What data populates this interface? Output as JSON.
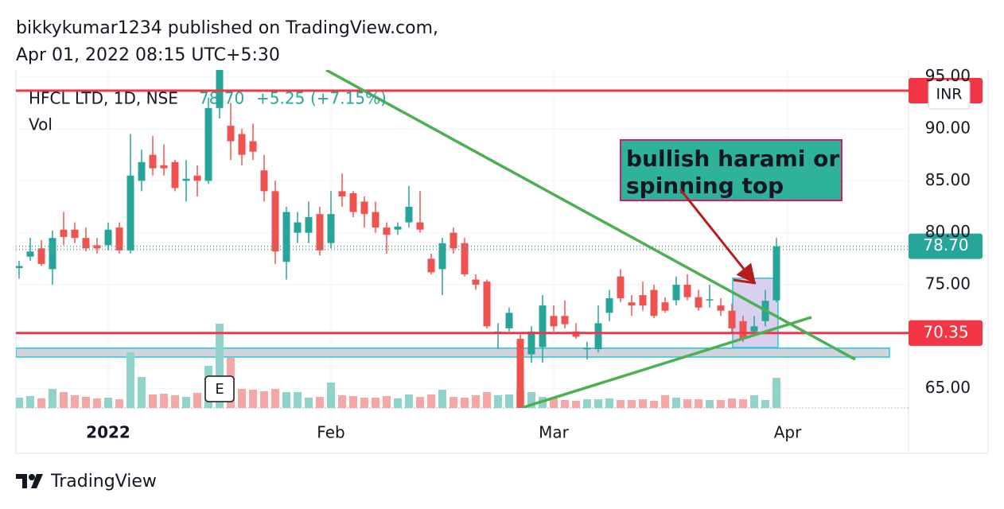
{
  "header": {
    "publisher": "bikkykumar1234 published on TradingView.com,",
    "date": "Apr 01, 2022 08:15 UTC+5:30"
  },
  "footer": {
    "brand": "TradingView"
  },
  "chart_data": {
    "type": "candlestick",
    "title": "HFCL LTD, 1D, NSE",
    "quote": {
      "close": {
        "value": 78.7,
        "label": "78.70"
      },
      "change": {
        "value": 5.25,
        "label": "+5.25"
      },
      "change_pct": {
        "value": 7.15,
        "label": "(+7.15%)"
      }
    },
    "currency": "INR",
    "volume_name": "Vol",
    "up_color": "#26a69a",
    "down_color": "#ef5350",
    "volume_up_color": "#8fd3cb",
    "volume_down_color": "#f5a6a5",
    "xlim": [
      -0.286,
      79.857
    ],
    "xticks": [
      {
        "value": 8,
        "label": "2022"
      },
      {
        "value": 28,
        "label": "Feb"
      },
      {
        "value": 48,
        "label": "Mar"
      },
      {
        "value": 69,
        "label": "Apr"
      }
    ],
    "ylim": [
      63.14,
      95.66
    ],
    "yticks": [
      {
        "value": 65,
        "label": "65.00"
      },
      {
        "value": 75,
        "label": "75.00"
      },
      {
        "value": 80,
        "label": "80.00"
      },
      {
        "value": 85,
        "label": "85.00"
      },
      {
        "value": 90,
        "label": "90.00"
      },
      {
        "value": 95,
        "label": "95.00"
      }
    ],
    "grid": true,
    "open": [
      76.6,
      77.7,
      78.5,
      76.5,
      80.3,
      80.3,
      79.5,
      78.8,
      78.8,
      80.5,
      78.3,
      85.0,
      87.5,
      86.5,
      86.8,
      85.0,
      85.5,
      85.0,
      92.0,
      90.3,
      89.5,
      88.8,
      86.0,
      84.0,
      77.2,
      80.0,
      80.0,
      81.8,
      79.0,
      84.0,
      83.8,
      83.0,
      82.0,
      80.5,
      80.3,
      81.0,
      81.0,
      77.5,
      76.5,
      80.0,
      79.0,
      75.5,
      75.3,
      70.3,
      70.8,
      69.8,
      68.3,
      69.0,
      72.0,
      72.0,
      70.5,
      68.8,
      68.8,
      72.3,
      75.8,
      73.3,
      74.0,
      74.5,
      73.3,
      73.5,
      75.0,
      73.8,
      73.5,
      73.0,
      72.5,
      71.5,
      70.5,
      71.5,
      73.5
    ],
    "high": [
      77.3,
      79.5,
      79.3,
      80.2,
      82.0,
      81.0,
      80.5,
      79.5,
      81.0,
      81.0,
      89.5,
      88.0,
      89.3,
      88.5,
      87.0,
      87.0,
      86.5,
      93.0,
      95.66,
      92.5,
      90.0,
      90.5,
      87.5,
      85.0,
      82.5,
      82.0,
      83.0,
      82.5,
      84.0,
      85.7,
      84.0,
      83.5,
      83.0,
      81.0,
      81.0,
      84.5,
      84.0,
      78.0,
      79.5,
      80.5,
      79.5,
      76.0,
      75.5,
      71.3,
      72.8,
      70.2,
      71.0,
      74.0,
      73.0,
      73.5,
      71.3,
      69.5,
      73.0,
      74.5,
      76.5,
      74.0,
      75.3,
      75.0,
      73.8,
      75.8,
      76.0,
      74.5,
      75.0,
      73.7,
      73.2,
      72.0,
      72.0,
      74.5,
      79.5
    ],
    "low": [
      75.6,
      77.3,
      76.8,
      75.0,
      78.8,
      79.0,
      78.2,
      78.0,
      78.3,
      78.0,
      78.0,
      84.0,
      85.5,
      85.5,
      84.0,
      83.0,
      83.5,
      84.7,
      91.0,
      87.0,
      86.5,
      87.0,
      83.0,
      77.0,
      75.5,
      79.0,
      79.0,
      77.8,
      78.5,
      82.5,
      81.5,
      80.5,
      80.0,
      78.0,
      79.8,
      80.5,
      80.0,
      76.0,
      74.0,
      78.0,
      75.8,
      74.5,
      70.8,
      68.8,
      70.5,
      63.14,
      67.5,
      67.5,
      70.5,
      70.8,
      69.8,
      67.8,
      68.5,
      71.5,
      73.3,
      72.0,
      72.5,
      71.8,
      72.3,
      73.0,
      73.5,
      72.5,
      72.8,
      72.0,
      70.3,
      69.5,
      70.3,
      71.0,
      73.3
    ],
    "close": [
      76.8,
      78.2,
      77.0,
      79.5,
      79.6,
      79.5,
      78.5,
      78.5,
      80.3,
      78.3,
      85.5,
      86.8,
      86.2,
      86.2,
      84.3,
      85.2,
      85.0,
      92.0,
      95.66,
      88.8,
      87.5,
      87.8,
      84.0,
      78.2,
      82.0,
      81.0,
      81.5,
      78.3,
      81.8,
      83.5,
      82.0,
      81.8,
      80.5,
      79.8,
      80.6,
      82.5,
      80.3,
      76.2,
      79.0,
      78.5,
      76.0,
      75.0,
      71.0,
      70.5,
      72.3,
      63.14,
      70.5,
      73.0,
      71.0,
      71.2,
      70.0,
      68.9,
      71.3,
      73.7,
      73.7,
      73.0,
      73.0,
      72.0,
      72.5,
      75.0,
      73.8,
      72.8,
      73.6,
      72.5,
      70.8,
      69.8,
      71.0,
      73.45,
      78.7
    ],
    "volume": [
      1.3,
      1.5,
      1.2,
      2.4,
      2.0,
      1.6,
      1.4,
      1.2,
      1.3,
      1.1,
      7.0,
      3.9,
      1.7,
      1.8,
      1.6,
      1.4,
      1.9,
      5.3,
      10.6,
      6.3,
      2.4,
      2.3,
      2.1,
      2.4,
      2.0,
      2.0,
      1.3,
      1.4,
      3.2,
      1.6,
      1.5,
      1.3,
      1.3,
      1.5,
      1.2,
      1.7,
      1.4,
      1.7,
      2.3,
      1.4,
      1.3,
      1.6,
      2.0,
      1.6,
      1.7,
      2.2,
      2.0,
      1.4,
      1.2,
      1.0,
      0.9,
      1.1,
      1.1,
      1.2,
      1.0,
      1.0,
      1.1,
      0.9,
      1.6,
      1.3,
      1.1,
      1.1,
      1.0,
      1.0,
      1.2,
      1.1,
      1.6,
      1.0,
      3.8
    ],
    "vlim": [
      0,
      12
    ],
    "events": [
      {
        "x": 18,
        "label": "E"
      }
    ],
    "hlines": [
      {
        "value": 93.67,
        "color": "#f23645"
      },
      {
        "value": 70.35,
        "color": "#f23645"
      }
    ],
    "dotted_lines": [
      78.7,
      78.4
    ],
    "price_labels": [
      {
        "value": 78.7,
        "label": "78.70",
        "color": "#26a69a"
      },
      {
        "value": 70.35,
        "label": "70.35",
        "color": "#f23645"
      }
    ],
    "zones": [
      {
        "x": [
          -0.286,
          78.14
        ],
        "y": [
          68.04,
          68.9
        ],
        "fill": "#d1d4dc",
        "stroke": "#26c6da"
      },
      {
        "x": [
          64.07,
          68.14
        ],
        "y": [
          68.96,
          75.62
        ],
        "fill": "#d8d0ee",
        "stroke": "#26c6da"
      }
    ],
    "trendlines": [
      {
        "x": [
          27.57,
          75.07
        ],
        "y": [
          95.66,
          67.81
        ],
        "color": "#4caf50"
      },
      {
        "x": [
          45.07,
          71.14
        ],
        "y": [
          63.14,
          71.87
        ],
        "color": "#4caf50"
      }
    ],
    "annotation": {
      "lines": [
        "bullish harami or",
        "spinning top"
      ]
    }
  }
}
